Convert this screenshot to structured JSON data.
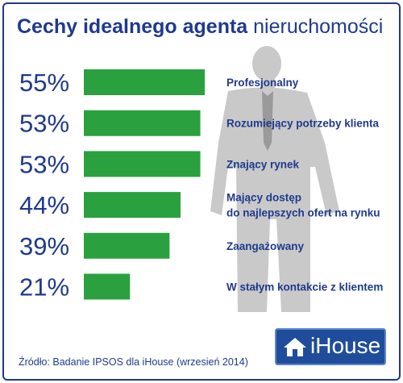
{
  "title_bold": "Cechy idealnego agenta",
  "title_normal": "nieruchomości",
  "source": "Źródło: Badanie IPSOS dla iHouse (wrzesień 2014)",
  "logo_text": "iHouse",
  "colors": {
    "bar": "#2aa13e",
    "text": "#1f3a8c",
    "silhouette": "#c9c9c9"
  },
  "chart_data": {
    "type": "bar",
    "orientation": "horizontal",
    "categories": [
      "Profesjonalny",
      "Rozumiejący potrzeby klienta",
      "Znający rynek",
      "Mający dostęp\ndo najlepszych ofert na rynku",
      "Zaangażowany",
      "W stałym kontakcie z klientem"
    ],
    "values": [
      55,
      53,
      53,
      44,
      39,
      21
    ],
    "value_labels": [
      "55%",
      "53%",
      "53%",
      "44%",
      "39%",
      "21%"
    ],
    "grid": false,
    "legend": "none"
  }
}
